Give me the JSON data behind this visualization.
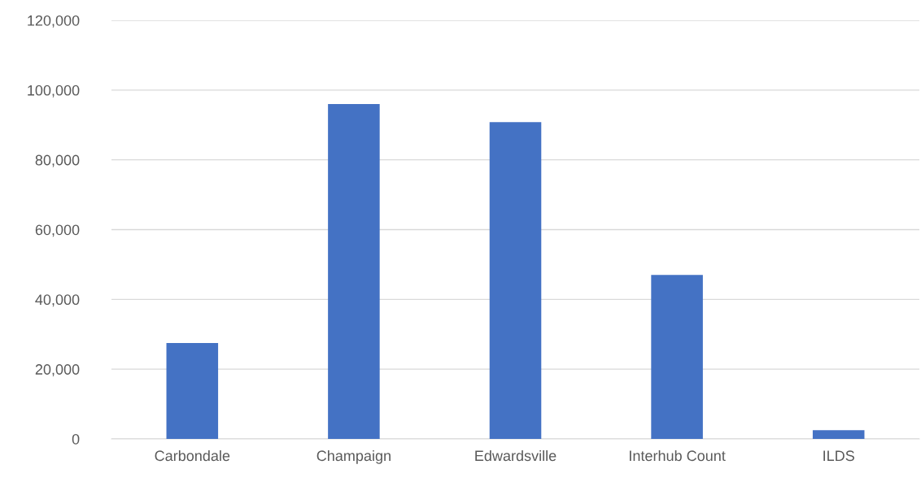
{
  "chart_data": {
    "type": "bar",
    "categories": [
      "Carbondale",
      "Champaign",
      "Edwardsville",
      "Interhub Count",
      "ILDS"
    ],
    "values": [
      27500,
      96000,
      90800,
      47000,
      2500
    ],
    "color": "#4472c4",
    "ylim": [
      0,
      120000
    ],
    "yticks": [
      {
        "value": 0,
        "label": "0"
      },
      {
        "value": 20000,
        "label": "20,000"
      },
      {
        "value": 40000,
        "label": "40,000"
      },
      {
        "value": 60000,
        "label": "60,000"
      },
      {
        "value": 80000,
        "label": "80,000"
      },
      {
        "value": 100000,
        "label": "100,000"
      },
      {
        "value": 120000,
        "label": "120,000"
      }
    ],
    "grid": "y"
  }
}
